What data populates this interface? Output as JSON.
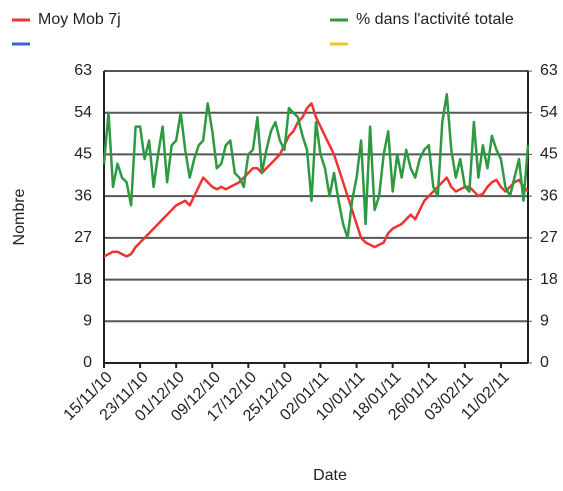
{
  "chart_data": {
    "type": "line",
    "x_label": "Date",
    "y_label": "Nombre",
    "categories": [
      "15/11/10",
      null,
      null,
      null,
      null,
      null,
      null,
      null,
      "23/11/10",
      null,
      null,
      null,
      null,
      null,
      null,
      null,
      "01/12/10",
      null,
      null,
      null,
      null,
      null,
      null,
      null,
      "09/12/10",
      null,
      null,
      null,
      null,
      null,
      null,
      null,
      "17/12/10",
      null,
      null,
      null,
      null,
      null,
      null,
      null,
      "25/12/10",
      null,
      null,
      null,
      null,
      null,
      null,
      null,
      "02/01/11",
      null,
      null,
      null,
      null,
      null,
      null,
      null,
      "10/01/11",
      null,
      null,
      null,
      null,
      null,
      null,
      null,
      "18/01/11",
      null,
      null,
      null,
      null,
      null,
      null,
      null,
      "26/01/11",
      null,
      null,
      null,
      null,
      null,
      null,
      null,
      "03/02/11",
      null,
      null,
      null,
      null,
      null,
      null,
      null,
      "11/02/11",
      null,
      null,
      null,
      null,
      null,
      null
    ],
    "series": [
      {
        "name": "Moy Mob 7j",
        "color": "#ee3333",
        "values": [
          23,
          23.5,
          24,
          24,
          23.5,
          23,
          23.5,
          25,
          26,
          27,
          28,
          29,
          30,
          31,
          32,
          33,
          34,
          34.5,
          35,
          34,
          36,
          38,
          40,
          39,
          38,
          37.5,
          38,
          37.5,
          38,
          38.5,
          39,
          40,
          41,
          42,
          42,
          41,
          42,
          43,
          44,
          45,
          47,
          49,
          50,
          52,
          53,
          55,
          56,
          53,
          51,
          49,
          47,
          45,
          42,
          39,
          36,
          33,
          30,
          27,
          26,
          25.5,
          25,
          25.5,
          26,
          28,
          29,
          29.5,
          30,
          31,
          32,
          31,
          33,
          35,
          36,
          37,
          38,
          39,
          40,
          38,
          37,
          37.5,
          38,
          38,
          37,
          36,
          36.5,
          38,
          39,
          39.5,
          38,
          37,
          38,
          39,
          39.5,
          38,
          37
        ]
      },
      {
        "name": "% dans l'activité totale",
        "color": "#2e9940",
        "values": [
          43,
          54,
          38,
          43,
          40,
          39,
          34,
          51,
          51,
          44,
          48,
          38,
          45,
          51,
          39,
          47,
          48,
          54,
          46,
          40,
          44,
          47,
          48,
          56,
          50,
          42,
          43,
          47,
          48,
          41,
          40,
          38,
          45,
          46,
          53,
          41,
          46,
          50,
          52,
          48,
          46,
          55,
          54,
          53,
          49,
          46,
          35,
          52,
          45,
          42,
          36,
          41,
          35,
          30,
          27,
          35,
          40,
          48,
          30,
          51,
          33,
          36,
          45,
          50,
          37,
          45,
          40,
          46,
          42,
          40,
          44,
          46,
          47,
          38,
          36,
          52,
          58,
          46,
          40,
          44,
          38,
          37,
          52,
          40,
          47,
          42,
          49,
          46,
          44,
          38,
          36,
          40,
          44,
          35,
          47
        ]
      },
      {
        "name": null,
        "color": "#3366dd",
        "values": [
          null,
          null,
          null,
          null,
          null,
          null,
          null,
          null,
          null,
          null,
          null,
          null,
          null,
          null,
          null,
          null,
          null,
          null,
          null,
          null,
          null,
          null,
          null,
          null,
          null,
          null,
          null,
          null,
          null,
          null,
          null,
          null,
          null,
          null,
          null,
          null,
          null,
          null,
          null,
          null,
          null,
          null,
          null,
          null,
          null,
          null,
          null,
          null,
          null,
          null,
          null,
          null,
          null,
          null,
          null,
          null,
          null,
          null,
          null,
          null,
          null,
          null,
          null,
          null,
          null,
          null,
          null,
          null,
          null,
          null,
          null,
          null,
          null,
          null,
          null,
          null,
          null,
          null,
          null,
          null,
          null,
          null,
          null,
          null,
          null,
          null,
          null,
          null,
          null,
          null,
          null,
          null,
          null,
          null,
          null
        ]
      },
      {
        "name": null,
        "color": "#f5c518",
        "values": [
          null,
          null,
          null,
          null,
          null,
          null,
          null,
          null,
          null,
          null,
          null,
          null,
          null,
          null,
          null,
          null,
          null,
          null,
          null,
          null,
          null,
          null,
          null,
          null,
          null,
          null,
          null,
          null,
          null,
          null,
          null,
          null,
          null,
          null,
          null,
          null,
          null,
          null,
          null,
          null,
          null,
          null,
          null,
          null,
          null,
          null,
          null,
          null,
          null,
          null,
          null,
          null,
          null,
          null,
          null,
          null,
          null,
          null,
          null,
          null,
          null,
          null,
          null,
          null,
          null,
          null,
          null,
          null,
          null,
          null,
          null,
          null,
          null,
          null,
          null,
          null,
          null,
          null,
          null,
          null,
          null,
          null,
          null,
          null,
          null,
          null,
          null,
          null,
          null,
          null,
          null,
          null,
          null,
          null,
          null
        ]
      }
    ],
    "ylim": [
      0,
      63
    ],
    "yticks": [
      0,
      9,
      18,
      27,
      36,
      45,
      54,
      63
    ],
    "y2lim": [
      0,
      63
    ],
    "y2ticks": [
      0,
      9,
      18,
      27,
      36,
      45,
      54,
      63
    ],
    "grid": true
  }
}
